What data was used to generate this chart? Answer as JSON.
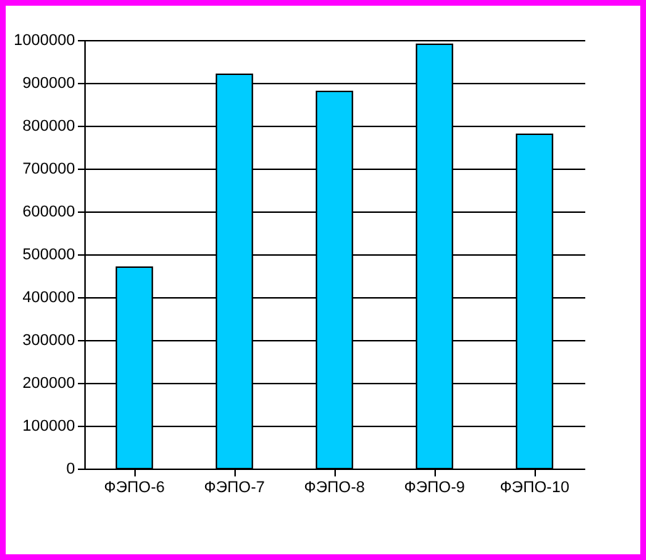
{
  "chart_data": {
    "type": "bar",
    "categories": [
      "ФЭПО-6",
      "ФЭПО-7",
      "ФЭПО-8",
      "ФЭПО-9",
      "ФЭПО-10"
    ],
    "values": [
      470000,
      920000,
      880000,
      990000,
      780000
    ],
    "color": "#00ccff",
    "ylim": [
      0,
      1000000
    ],
    "yticks": [
      0,
      100000,
      200000,
      300000,
      400000,
      500000,
      600000,
      700000,
      800000,
      900000,
      1000000
    ],
    "grid": "y"
  }
}
